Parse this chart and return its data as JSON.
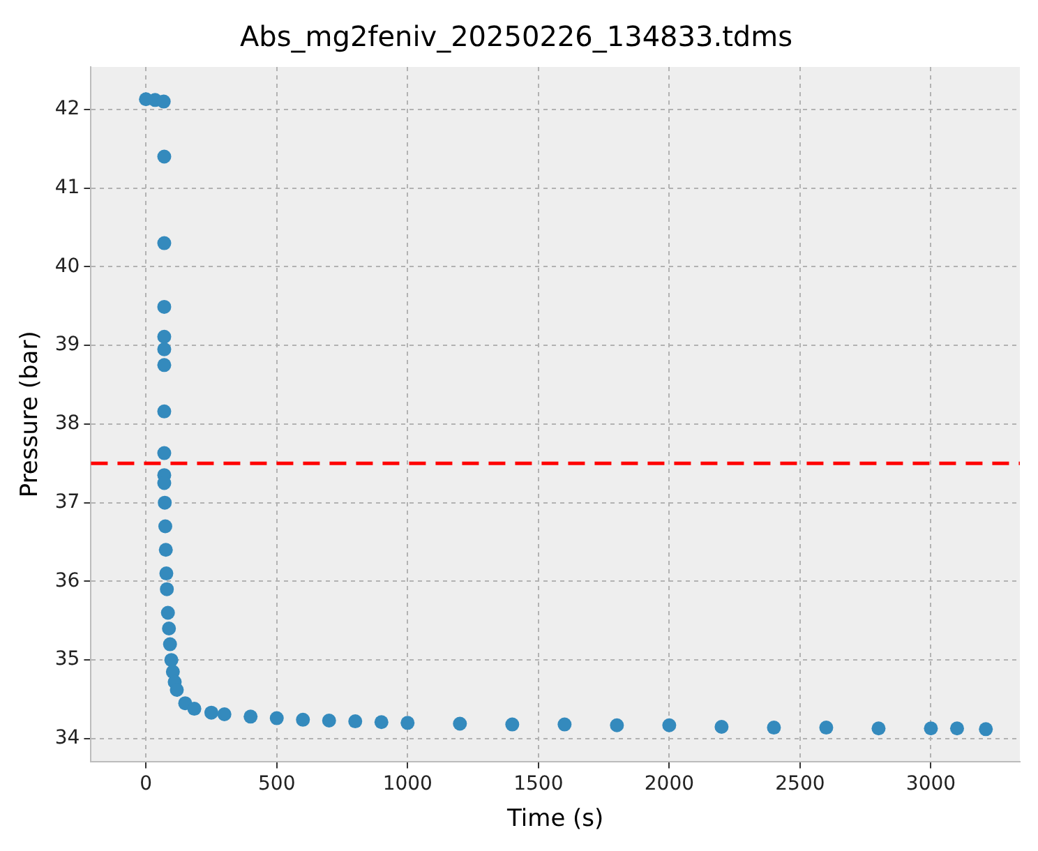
{
  "chart_data": {
    "type": "scatter",
    "title": "Abs_mg2feniv_20250226_134833.tdms",
    "xlabel": "Time (s)",
    "ylabel": "Pressure (bar)",
    "x": [
      0,
      35,
      68,
      70,
      70,
      70,
      70,
      70,
      70,
      70,
      70,
      70,
      70,
      72,
      74,
      76,
      78,
      80,
      84,
      88,
      92,
      97,
      103,
      110,
      118,
      150,
      185,
      250,
      300,
      400,
      500,
      600,
      700,
      800,
      900,
      1000,
      1200,
      1400,
      1600,
      1800,
      2000,
      2200,
      2400,
      2600,
      2800,
      3000,
      3100,
      3210
    ],
    "values": [
      42.13,
      42.12,
      42.1,
      41.4,
      40.3,
      39.49,
      39.11,
      38.95,
      38.75,
      38.16,
      37.63,
      37.35,
      37.25,
      37.0,
      36.7,
      36.4,
      36.1,
      35.9,
      35.6,
      35.4,
      35.2,
      35.0,
      34.85,
      34.72,
      34.62,
      34.45,
      34.38,
      34.33,
      34.31,
      34.28,
      34.26,
      34.24,
      34.23,
      34.22,
      34.21,
      34.2,
      34.19,
      34.18,
      34.18,
      34.17,
      34.17,
      34.15,
      34.14,
      34.14,
      34.13,
      34.13,
      34.13,
      34.12
    ],
    "color": "#348abd",
    "marker": "circle",
    "xlim": [
      -210,
      3340
    ],
    "xticks": [
      0,
      500,
      1000,
      1500,
      2000,
      2500,
      3000
    ],
    "ylim": [
      33.71,
      42.54
    ],
    "yticks": [
      34,
      35,
      36,
      37,
      38,
      39,
      40,
      41,
      42
    ],
    "grid": true,
    "legend": false,
    "ref_lines": [
      {
        "axis": "y",
        "value": 37.5,
        "color": "#ff0000",
        "line_style": "dashed"
      }
    ]
  }
}
